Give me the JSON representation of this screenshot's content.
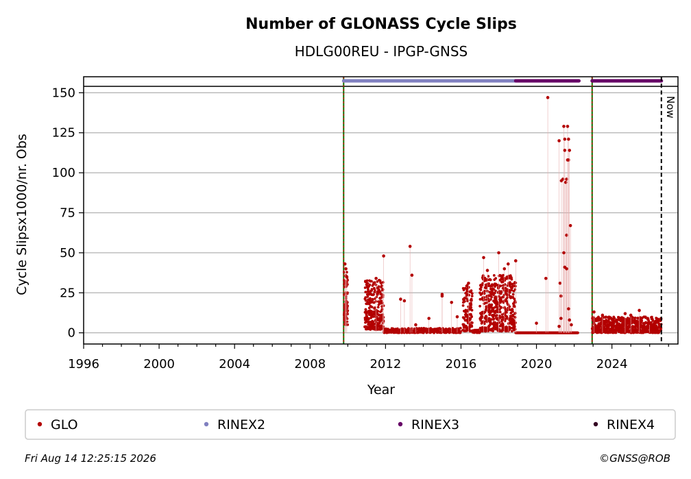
{
  "chart_data": {
    "type": "scatter",
    "title": "Number of GLONASS Cycle Slips",
    "subtitle": "HDLG00REU - IPGP-GNSS",
    "xlabel": "Year",
    "ylabel": "Cycle Slipsx1000/nr. Obs",
    "xlim": [
      1996.0,
      2027.5
    ],
    "ylim": [
      -7,
      160
    ],
    "x_ticks": [
      1996,
      2000,
      2004,
      2008,
      2012,
      2016,
      2020,
      2024
    ],
    "y_ticks": [
      0,
      25,
      50,
      75,
      100,
      125,
      150
    ],
    "grid": "horizontal",
    "now_line": {
      "x": 2026.62,
      "label": "Now"
    },
    "top_reference_y": 154,
    "event_lines": [
      2009.78,
      2022.95
    ],
    "rinex_bars": [
      {
        "format": "RINEX2",
        "start": 2009.78,
        "end": 2019.0
      },
      {
        "format": "RINEX3",
        "start": 2018.9,
        "end": 2022.25
      },
      {
        "format": "RINEX3",
        "start": 2022.95,
        "end": 2026.62
      }
    ],
    "series": [
      {
        "name": "GLO",
        "color": "#b30000",
        "dense_segments": [
          {
            "start": 2009.8,
            "end": 2010.0,
            "min": 5,
            "max": 38,
            "count": 80
          },
          {
            "start": 2010.9,
            "end": 2011.9,
            "min": 2,
            "max": 33,
            "count": 260
          },
          {
            "start": 2011.9,
            "end": 2016.0,
            "min": 0,
            "max": 3,
            "count": 260
          },
          {
            "start": 2016.1,
            "end": 2016.6,
            "min": 1,
            "max": 30,
            "count": 110
          },
          {
            "start": 2016.6,
            "end": 2017.0,
            "min": 0,
            "max": 2,
            "count": 40
          },
          {
            "start": 2017.0,
            "end": 2018.9,
            "min": 1,
            "max": 36,
            "count": 520
          },
          {
            "start": 2018.9,
            "end": 2022.2,
            "min": 0,
            "max": 0,
            "count": 320
          },
          {
            "start": 2022.95,
            "end": 2026.62,
            "min": 0,
            "max": 10,
            "count": 620
          }
        ],
        "points": [
          [
            2009.85,
            43
          ],
          [
            2009.9,
            40
          ],
          [
            2009.95,
            35
          ],
          [
            2011.5,
            34
          ],
          [
            2011.85,
            27
          ],
          [
            2011.9,
            48
          ],
          [
            2012.8,
            21
          ],
          [
            2013.0,
            20
          ],
          [
            2013.3,
            54
          ],
          [
            2013.4,
            36
          ],
          [
            2013.6,
            5
          ],
          [
            2014.3,
            9
          ],
          [
            2015.0,
            24
          ],
          [
            2015.0,
            23
          ],
          [
            2015.5,
            19
          ],
          [
            2015.8,
            10
          ],
          [
            2016.4,
            31
          ],
          [
            2017.2,
            47
          ],
          [
            2017.4,
            39
          ],
          [
            2018.0,
            50
          ],
          [
            2018.3,
            40
          ],
          [
            2018.5,
            43
          ],
          [
            2018.9,
            45
          ],
          [
            2020.0,
            6
          ],
          [
            2020.5,
            34
          ],
          [
            2020.6,
            147
          ],
          [
            2021.2,
            120
          ],
          [
            2021.25,
            31
          ],
          [
            2021.3,
            23
          ],
          [
            2021.32,
            95
          ],
          [
            2021.4,
            96
          ],
          [
            2021.45,
            129
          ],
          [
            2021.5,
            121
          ],
          [
            2021.5,
            114
          ],
          [
            2021.55,
            94
          ],
          [
            2021.6,
            96
          ],
          [
            2021.6,
            61
          ],
          [
            2021.65,
            129
          ],
          [
            2021.7,
            121
          ],
          [
            2021.65,
            108
          ],
          [
            2021.7,
            108
          ],
          [
            2021.75,
            114
          ],
          [
            2021.8,
            67
          ],
          [
            2021.45,
            50
          ],
          [
            2021.5,
            41
          ],
          [
            2021.6,
            40
          ],
          [
            2021.7,
            15
          ],
          [
            2021.75,
            8
          ],
          [
            2021.85,
            5
          ],
          [
            2021.3,
            9
          ],
          [
            2021.2,
            4
          ],
          [
            2023.05,
            13
          ],
          [
            2023.5,
            11
          ],
          [
            2024.7,
            12
          ],
          [
            2025.0,
            11
          ],
          [
            2025.45,
            14
          ],
          [
            2026.0,
            6
          ]
        ]
      },
      {
        "name": "RINEX2",
        "color": "#8080c0"
      },
      {
        "name": "RINEX3",
        "color": "#660066"
      },
      {
        "name": "RINEX4",
        "color": "#330022"
      }
    ]
  },
  "footer": {
    "timestamp": "Fri Aug 14 12:25:15 2026",
    "credit": "©GNSS@ROB"
  }
}
